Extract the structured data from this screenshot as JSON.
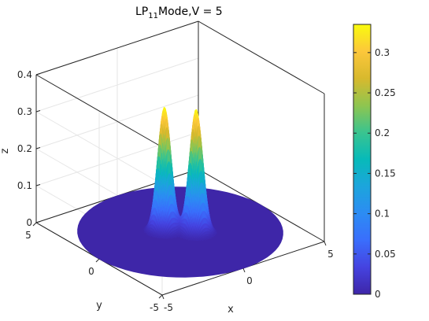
{
  "chart_data": {
    "type": "surface",
    "title_main": "LP",
    "title_sub": "11",
    "title_rest": "Mode,V = 5",
    "xlabel": "x",
    "ylabel": "y",
    "zlabel": "z",
    "xlim": [
      -5,
      5
    ],
    "ylim": [
      -5,
      5
    ],
    "zlim": [
      0,
      0.4
    ],
    "x_ticks": [
      -5,
      0,
      5
    ],
    "y_ticks": [
      -5,
      0,
      5
    ],
    "z_ticks": [
      0,
      0.1,
      0.2,
      0.3,
      0.4
    ],
    "x_tick_labels": [
      "-5",
      "0",
      "5"
    ],
    "y_tick_labels": [
      "-5",
      "0",
      "5"
    ],
    "z_tick_labels": [
      "0",
      "0.1",
      "0.2",
      "0.3",
      "0.4"
    ],
    "surface": {
      "domain": "disk",
      "radius": 5,
      "lobes": [
        {
          "x": -0.55,
          "y": 0.55,
          "peak": 0.335
        },
        {
          "x": 0.55,
          "y": -0.55,
          "peak": 0.335
        }
      ],
      "lobe_width": 0.33,
      "max_value": 0.335
    },
    "colorbar": {
      "colormap": "parula",
      "range": [
        0,
        0.335
      ],
      "ticks": [
        0,
        0.05,
        0.1,
        0.15,
        0.2,
        0.25,
        0.3
      ],
      "tick_labels": [
        "0",
        "0.05",
        "0.1",
        "0.15",
        "0.2",
        "0.25",
        "0.3"
      ]
    },
    "colors": {
      "base": "#3e26a8",
      "peak": "#f9fb0e",
      "grid": "#e6e6e6",
      "axis": "#262626"
    }
  }
}
